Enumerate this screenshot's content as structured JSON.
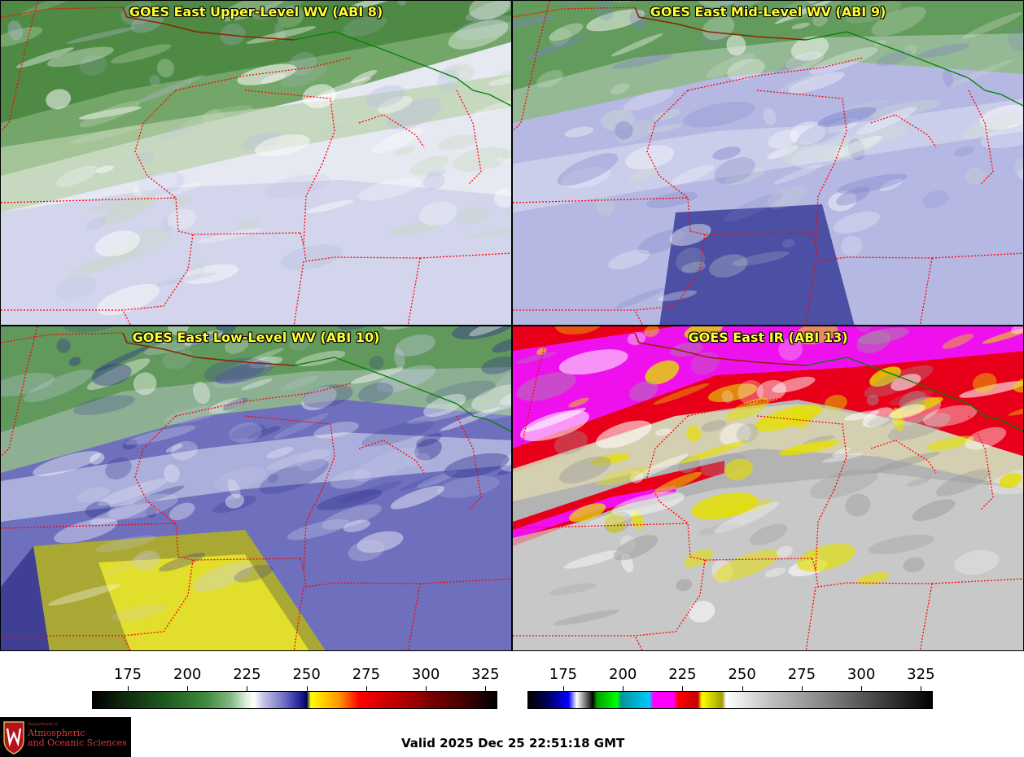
{
  "panels": [
    {
      "id": "p1",
      "title": "GOES East Upper-Level WV (ABI 8)",
      "palette": "wv-upper"
    },
    {
      "id": "p2",
      "title": "GOES East Mid-Level WV (ABI 9)",
      "palette": "wv-mid"
    },
    {
      "id": "p3",
      "title": "GOES East Low-Level WV (ABI 10)",
      "palette": "wv-low"
    },
    {
      "id": "p4",
      "title": "GOES East IR (ABI 13)",
      "palette": "ir"
    }
  ],
  "colorbars": {
    "wv": {
      "ticks": [
        "175",
        "200",
        "225",
        "250",
        "275",
        "300",
        "325"
      ],
      "range": [
        160,
        330
      ]
    },
    "ir": {
      "ticks": [
        "175",
        "200",
        "225",
        "250",
        "275",
        "300",
        "325"
      ],
      "range": [
        160,
        330
      ]
    }
  },
  "logo": {
    "dept": "Department of",
    "line1": "Atmospheric",
    "line2": "and Oceanic Sciences"
  },
  "valid_time": "Valid 2025 Dec 25 22:51:18 GMT",
  "colors": {
    "title_text": "#ffff33",
    "state_borders": "#ff0000",
    "coastline": "#8b2500",
    "intl_border": "#008000"
  }
}
